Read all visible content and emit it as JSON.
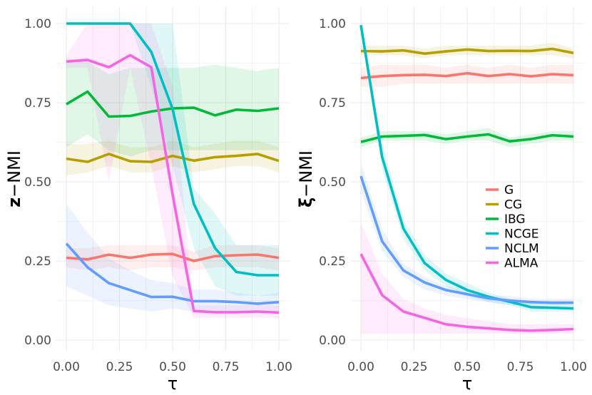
{
  "chart_data": [
    {
      "type": "line",
      "title": "",
      "xlabel": "τ",
      "ylabel_bold": "z",
      "ylabel_rest": "−NMI",
      "xlim": [
        0,
        1
      ],
      "ylim": [
        0,
        1
      ],
      "xticks": [
        "0.00",
        "0.25",
        "0.50",
        "0.75",
        "1.00"
      ],
      "yticks": [
        "0.00",
        "0.25",
        "0.50",
        "0.75",
        "1.00"
      ],
      "x": [
        0,
        0.1,
        0.2,
        0.3,
        0.4,
        0.5,
        0.6,
        0.7,
        0.8,
        0.9,
        1.0
      ],
      "series": [
        {
          "name": "G",
          "color": "#F8766D",
          "values": [
            0.26,
            0.255,
            0.27,
            0.26,
            0.27,
            0.272,
            0.25,
            0.265,
            0.268,
            0.27,
            0.26
          ],
          "lower": [
            0.23,
            0.22,
            0.23,
            0.22,
            0.23,
            0.23,
            0.22,
            0.23,
            0.23,
            0.23,
            0.22
          ],
          "upper": [
            0.29,
            0.29,
            0.3,
            0.3,
            0.3,
            0.3,
            0.28,
            0.3,
            0.3,
            0.3,
            0.29
          ]
        },
        {
          "name": "CG",
          "color": "#B79F00",
          "values": [
            0.573,
            0.563,
            0.588,
            0.565,
            0.563,
            0.582,
            0.567,
            0.578,
            0.582,
            0.588,
            0.566
          ],
          "lower": [
            0.52,
            0.53,
            0.55,
            0.53,
            0.53,
            0.55,
            0.53,
            0.54,
            0.55,
            0.55,
            0.53
          ],
          "upper": [
            0.62,
            0.62,
            0.63,
            0.61,
            0.61,
            0.63,
            0.61,
            0.62,
            0.63,
            0.63,
            0.61
          ]
        },
        {
          "name": "IBG",
          "color": "#00BA38",
          "values": [
            0.745,
            0.785,
            0.706,
            0.708,
            0.722,
            0.732,
            0.734,
            0.71,
            0.728,
            0.724,
            0.732
          ],
          "lower": [
            0.61,
            0.65,
            0.6,
            0.58,
            0.6,
            0.6,
            0.6,
            0.6,
            0.6,
            0.6,
            0.6
          ],
          "upper": [
            0.88,
            0.88,
            0.84,
            0.86,
            0.86,
            0.86,
            0.86,
            0.87,
            0.86,
            0.85,
            0.86
          ]
        },
        {
          "name": "NCGE",
          "color": "#00BFC4",
          "values": [
            1.0,
            1.0,
            1.0,
            1.0,
            0.91,
            0.73,
            0.43,
            0.29,
            0.215,
            0.205,
            0.205
          ],
          "lower": [
            1.0,
            1.0,
            1.0,
            1.0,
            0.8,
            0.55,
            0.29,
            0.17,
            0.14,
            0.14,
            0.14
          ],
          "upper": [
            1.0,
            1.0,
            1.0,
            1.0,
            1.0,
            1.0,
            0.48,
            0.4,
            0.3,
            0.3,
            0.3
          ]
        },
        {
          "name": "NCLM",
          "color": "#619CFF",
          "values": [
            0.305,
            0.23,
            0.18,
            0.158,
            0.136,
            0.137,
            0.123,
            0.123,
            0.12,
            0.115,
            0.12
          ],
          "lower": [
            0.17,
            0.14,
            0.11,
            0.1,
            0.09,
            0.1,
            0.09,
            0.09,
            0.09,
            0.09,
            0.09
          ],
          "upper": [
            0.43,
            0.34,
            0.26,
            0.22,
            0.19,
            0.18,
            0.16,
            0.16,
            0.15,
            0.14,
            0.15
          ]
        },
        {
          "name": "ALMA",
          "color": "#F564E3",
          "values": [
            0.88,
            0.885,
            0.862,
            0.9,
            0.862,
            0.46,
            0.092,
            0.088,
            0.088,
            0.09,
            0.087
          ],
          "lower": [
            0.86,
            0.86,
            0.5,
            0.86,
            0.55,
            0.2,
            0.07,
            0.07,
            0.07,
            0.07,
            0.07
          ],
          "upper": [
            0.9,
            1.0,
            1.0,
            1.0,
            1.0,
            0.8,
            0.11,
            0.11,
            0.11,
            0.11,
            0.11
          ]
        }
      ]
    },
    {
      "type": "line",
      "title": "",
      "xlabel": "τ",
      "ylabel_bold": "ξ",
      "ylabel_rest": "−NMI",
      "xlim": [
        0,
        1
      ],
      "ylim": [
        0,
        1
      ],
      "xticks": [
        "0.00",
        "0.25",
        "0.50",
        "0.75",
        "1.00"
      ],
      "yticks": [
        "0.00",
        "0.25",
        "0.50",
        "0.75",
        "1.00"
      ],
      "x": [
        0,
        0.1,
        0.2,
        0.3,
        0.4,
        0.5,
        0.6,
        0.7,
        0.8,
        0.9,
        1.0
      ],
      "series": [
        {
          "name": "G",
          "color": "#F8766D",
          "values": [
            0.828,
            0.834,
            0.837,
            0.838,
            0.834,
            0.843,
            0.834,
            0.84,
            0.833,
            0.84,
            0.837
          ],
          "lower": [
            0.8,
            0.8,
            0.81,
            0.81,
            0.81,
            0.81,
            0.81,
            0.81,
            0.81,
            0.81,
            0.81
          ],
          "upper": [
            0.86,
            0.87,
            0.87,
            0.87,
            0.86,
            0.87,
            0.86,
            0.87,
            0.86,
            0.87,
            0.87
          ]
        },
        {
          "name": "CG",
          "color": "#B79F00",
          "values": [
            0.913,
            0.912,
            0.915,
            0.905,
            0.912,
            0.918,
            0.913,
            0.914,
            0.913,
            0.92,
            0.907
          ],
          "lower": [
            0.9,
            0.9,
            0.9,
            0.89,
            0.9,
            0.9,
            0.9,
            0.9,
            0.9,
            0.9,
            0.89
          ],
          "upper": [
            0.93,
            0.93,
            0.93,
            0.92,
            0.93,
            0.93,
            0.93,
            0.93,
            0.93,
            0.94,
            0.92
          ]
        },
        {
          "name": "IBG",
          "color": "#00BA38",
          "values": [
            0.626,
            0.643,
            0.645,
            0.648,
            0.635,
            0.643,
            0.65,
            0.628,
            0.635,
            0.647,
            0.643
          ],
          "lower": [
            0.61,
            0.63,
            0.63,
            0.63,
            0.62,
            0.63,
            0.63,
            0.61,
            0.62,
            0.63,
            0.63
          ],
          "upper": [
            0.64,
            0.66,
            0.66,
            0.66,
            0.65,
            0.66,
            0.67,
            0.64,
            0.65,
            0.66,
            0.66
          ]
        },
        {
          "name": "NCGE",
          "color": "#00BFC4",
          "values": [
            0.995,
            0.578,
            0.352,
            0.243,
            0.19,
            0.158,
            0.137,
            0.121,
            0.104,
            0.102,
            0.1
          ],
          "lower": [
            0.98,
            0.54,
            0.32,
            0.22,
            0.17,
            0.14,
            0.12,
            0.11,
            0.09,
            0.09,
            0.09
          ],
          "upper": [
            1.0,
            0.62,
            0.38,
            0.27,
            0.21,
            0.18,
            0.15,
            0.13,
            0.12,
            0.12,
            0.11
          ]
        },
        {
          "name": "NCLM",
          "color": "#619CFF",
          "values": [
            0.518,
            0.312,
            0.22,
            0.182,
            0.158,
            0.145,
            0.132,
            0.125,
            0.12,
            0.118,
            0.118
          ],
          "lower": [
            0.47,
            0.28,
            0.2,
            0.16,
            0.14,
            0.13,
            0.12,
            0.11,
            0.11,
            0.11,
            0.11
          ],
          "upper": [
            0.56,
            0.35,
            0.24,
            0.2,
            0.17,
            0.16,
            0.14,
            0.14,
            0.13,
            0.13,
            0.13
          ]
        },
        {
          "name": "ALMA",
          "color": "#F564E3",
          "values": [
            0.272,
            0.142,
            0.09,
            0.07,
            0.05,
            0.042,
            0.037,
            0.032,
            0.03,
            0.032,
            0.035
          ],
          "lower": [
            0.02,
            0.02,
            0.02,
            0.02,
            0.02,
            0.02,
            0.02,
            0.02,
            0.02,
            0.02,
            0.02
          ],
          "upper": [
            0.37,
            0.21,
            0.13,
            0.1,
            0.08,
            0.07,
            0.06,
            0.05,
            0.05,
            0.05,
            0.05
          ]
        }
      ]
    }
  ],
  "legend": {
    "placement": "inside-right-panel-middle-right",
    "entries": [
      "G",
      "CG",
      "IBG",
      "NCGE",
      "NCLM",
      "ALMA"
    ]
  }
}
